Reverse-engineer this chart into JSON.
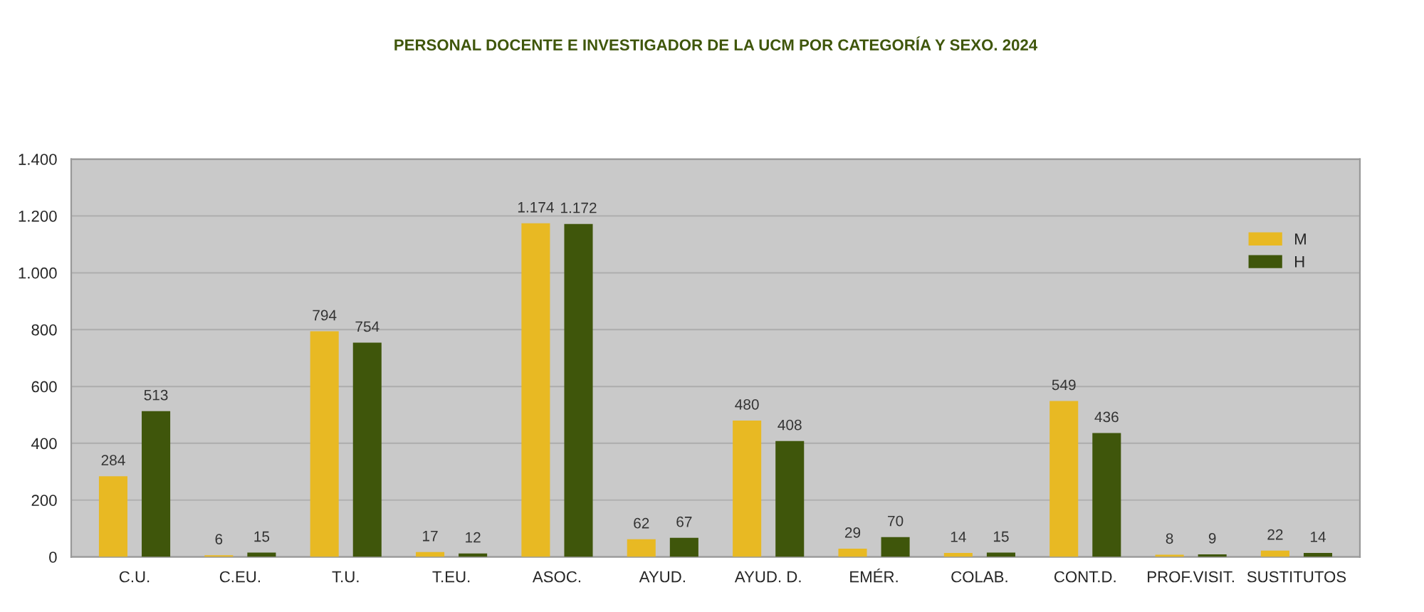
{
  "chart_data": {
    "type": "bar",
    "title": "PERSONAL DOCENTE E INVESTIGADOR DE LA UCM POR CATEGORÍA Y SEXO. 2024",
    "categories": [
      "C.U.",
      "C.EU.",
      "T.U.",
      "T.EU.",
      "ASOC.",
      "AYUD.",
      "AYUD. D.",
      "EMÉR.",
      "COLAB.",
      "CONT.D.",
      "PROF.VISIT.",
      "SUSTITUTOS"
    ],
    "series": [
      {
        "name": "M",
        "color": "#e8b923",
        "values": [
          284,
          6,
          794,
          17,
          1174,
          62,
          480,
          29,
          14,
          549,
          8,
          22
        ],
        "value_labels": [
          "284",
          "6",
          "794",
          "17",
          "1.174",
          "62",
          "480",
          "29",
          "14",
          "549",
          "8",
          "22"
        ]
      },
      {
        "name": "H",
        "color": "#3f560b",
        "values": [
          513,
          15,
          754,
          12,
          1172,
          67,
          408,
          70,
          15,
          436,
          9,
          14
        ],
        "value_labels": [
          "513",
          "15",
          "754",
          "12",
          "1.172",
          "67",
          "408",
          "70",
          "15",
          "436",
          "9",
          "14"
        ]
      }
    ],
    "ylim": [
      0,
      1400
    ],
    "yticks": [
      0,
      200,
      400,
      600,
      800,
      {
        "value": 1000,
        "label": "1.000"
      },
      {
        "value": 1200,
        "label": "1.200"
      },
      {
        "value": 1400,
        "label": "1.400"
      }
    ],
    "grid": "y",
    "legend": "upper right"
  }
}
